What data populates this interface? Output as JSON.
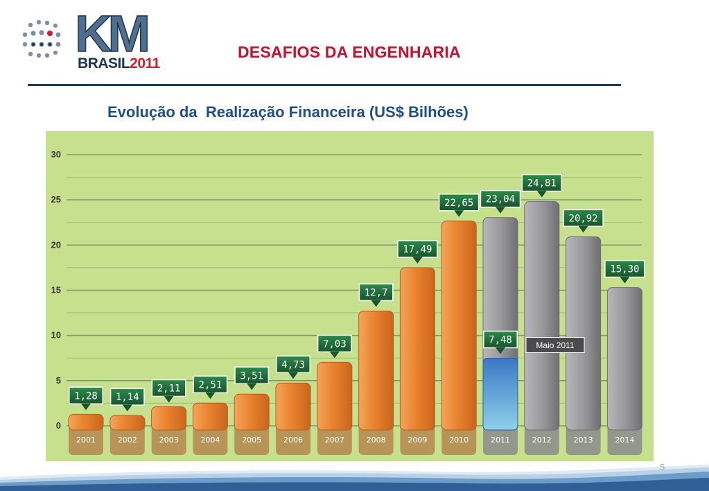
{
  "header": {
    "logo_text": "KM",
    "logo_subtext": "BRASIL",
    "logo_year": "2011",
    "title": "DESAFIOS DA ENGENHARIA"
  },
  "footer": {
    "page_number": "5"
  },
  "colors": {
    "title": "#c8102e",
    "subtitle": "#1f4e8c",
    "chart_bg": "#c6e08e",
    "bar_orange": "#e9832f",
    "bar_gray": "#8e8e90",
    "bar_blue": "#3d86c8",
    "callout_green": "#1e6b3a"
  },
  "chart_data": {
    "type": "bar",
    "title": "Evolução da  Realização Financeira (US$ Bilhões)",
    "xlabel": "",
    "ylabel": "",
    "ylim": [
      0,
      30
    ],
    "yticks": [
      "0",
      "5",
      "10",
      "15",
      "20",
      "25",
      "30"
    ],
    "grid": true,
    "categories": [
      "2001",
      "2002",
      "2003",
      "2004",
      "2005",
      "2006",
      "2007",
      "2008",
      "2009",
      "2010",
      "2011",
      "2012",
      "2013",
      "2014"
    ],
    "values": [
      1.28,
      1.14,
      2.11,
      2.51,
      3.51,
      4.73,
      7.03,
      12.7,
      17.49,
      22.65,
      23.04,
      24.81,
      20.92,
      15.3
    ],
    "value_labels": [
      "1,28",
      "1,14",
      "2,11",
      "2,51",
      "3,51",
      "4,73",
      "7,03",
      "12,7",
      "17,49",
      "22,65",
      "23,04",
      "24,81",
      "20,92",
      "15,30"
    ],
    "bar_styles": [
      "realizado",
      "realizado",
      "realizado",
      "realizado",
      "realizado",
      "realizado",
      "realizado",
      "realizado",
      "realizado",
      "realizado",
      "previsto",
      "previsto",
      "previsto",
      "previsto"
    ],
    "partial": {
      "category": "2011",
      "value": 7.48,
      "label": "7,48",
      "note": "Maio 2011"
    }
  }
}
